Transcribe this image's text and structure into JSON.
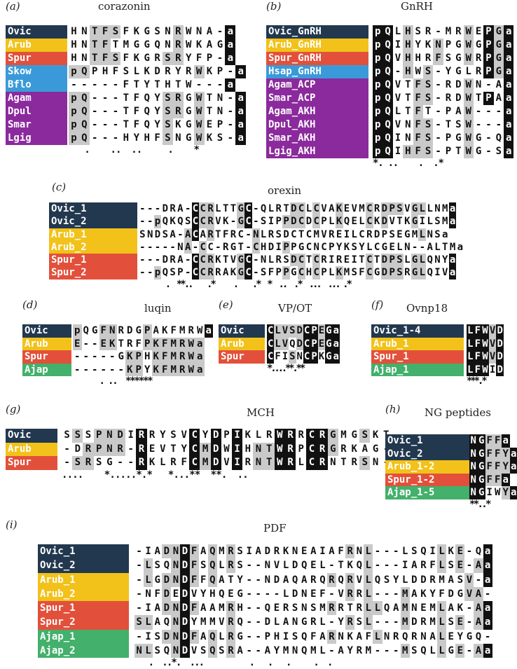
{
  "colors": {
    "navy": "#22384f",
    "gold": "#f2c21a",
    "red": "#e2503b",
    "blue": "#3a9ad9",
    "purple": "#8b2a9c",
    "green": "#43b06b"
  },
  "panels": [
    {
      "id": "a",
      "label": "(a)",
      "title": "corazonin",
      "rows": [
        {
          "name": "Ovic",
          "color": "navy",
          "seq": "HNTFSFKGSNRWNA-a",
          "mask": "................"
        },
        {
          "name": "Arub",
          "color": "gold",
          "seq": "HNTFTMGGQNRWKAGa",
          "mask": "................"
        },
        {
          "name": "Spur",
          "color": "red",
          "seq": "HNTFSFKGRSRYFP-a",
          "mask": "................"
        },
        {
          "name": "Skow",
          "color": "blue",
          "seq": "pQPHFSLKDRYRWKP-a",
          "mask": "................."
        },
        {
          "name": "Bflo",
          "color": "blue",
          "seq": "-----FTYTHTW---a",
          "mask": "................"
        },
        {
          "name": "Agam",
          "color": "purple",
          "seq": "pQ---TFQYSRGWTN-a",
          "mask": "................."
        },
        {
          "name": "Dpul",
          "color": "purple",
          "seq": "pQ---TFQYSRGWTN-a",
          "mask": "................."
        },
        {
          "name": "Smar",
          "color": "purple",
          "seq": "pQ---TFQYSKGWEP-a",
          "mask": "................."
        },
        {
          "name": "Lgig",
          "color": "purple",
          "seq": "pQ---HYHFSNGWKS-a",
          "mask": "................."
        }
      ],
      "consensus": "   .    ..  ..     .    *"
    },
    {
      "id": "b",
      "label": "(b)",
      "title": "GnRH",
      "rows": [
        {
          "name": "Ovic_GnRH",
          "color": "navy",
          "seq": "pQLHSR-MRWEPGa"
        },
        {
          "name": "Arub_GnRH",
          "color": "gold",
          "seq": "pQIHYKNPGWGPGa"
        },
        {
          "name": "Spur_GnRH",
          "color": "red",
          "seq": "pQVHHRFSGWRPGa"
        },
        {
          "name": "Hsap_GnRH",
          "color": "blue",
          "seq": "pQ-HWS-YGLRPGa"
        },
        {
          "name": "Agam_ACP",
          "color": "purple",
          "seq": "pQVTFS-RDWN-Aa"
        },
        {
          "name": "Smar_ACP",
          "color": "purple",
          "seq": "pQVTFS-RDWTPAa"
        },
        {
          "name": "Agam_AKH",
          "color": "purple",
          "seq": "pQLTFT-PAW---a"
        },
        {
          "name": "Dpul_AKH",
          "color": "purple",
          "seq": "pQVNFS-TSW---a"
        },
        {
          "name": "Smar_AKH",
          "color": "purple",
          "seq": "pQINFS-PGWG-Qa"
        },
        {
          "name": "Lgig_AKH",
          "color": "purple",
          "seq": "pQIHFS-PTWG-Sa"
        }
      ],
      "consensus": "*. ..    .  .*"
    },
    {
      "id": "c",
      "label": "(c)",
      "title": "orexin",
      "rows": [
        {
          "name": "Ovic_1",
          "color": "navy",
          "seq": "---DRA-CCRLTTGC-QLRTDCLCVAKEVMCRDPSVGLLNMa"
        },
        {
          "name": "Ovic_2",
          "color": "navy",
          "seq": "--pQKQSCCRVK-GC-SIPPDCDCPLKQELCKDVTKGILSMa"
        },
        {
          "name": "Arub_1",
          "color": "gold",
          "seq": "SNDSA-ACARTFRC-NLRSDCTCMVREILCRDPSEGMLNSa"
        },
        {
          "name": "Arub_2",
          "color": "gold",
          "seq": "-----NA-CC-RGT-CHDIPPGCNCPYKSYLCGELN--ALTMa"
        },
        {
          "name": "Spur_1",
          "color": "red",
          "seq": "---DRA-CCRKTVGC-NLRSDCTCRIREITCTDPSLGLQNYa"
        },
        {
          "name": "Spur_2",
          "color": "red",
          "seq": "--pQSP-CCRRAKGC-SFPPGCHCPLKMSFCGDPSRGLQIVa"
        }
      ],
      "consensus": "       .  **..    .*     .    .*  *  ..  .*  ...  ... .*"
    },
    {
      "id": "d",
      "label": "(d)",
      "title": "luqin",
      "rows": [
        {
          "name": "Ovic",
          "color": "navy",
          "seq": "pQGFNRDGPAKFMRWa"
        },
        {
          "name": "Arub",
          "color": "gold",
          "seq": "E--EKTRFPKFMRWa"
        },
        {
          "name": "Spur",
          "color": "red",
          "seq": "-----GKPHKFMRWa"
        },
        {
          "name": "Ajap",
          "color": "green",
          "seq": "------KPYKFMRWa"
        }
      ],
      "consensus": "      . ..  ******"
    },
    {
      "id": "e",
      "label": "(e)",
      "title": "VP/OT",
      "rows": [
        {
          "name": "Ovic",
          "color": "navy",
          "seq": "CLVSDCPEGa"
        },
        {
          "name": "Arub",
          "color": "gold",
          "seq": "CLVQDCPEGa"
        },
        {
          "name": "Spur",
          "color": "red",
          "seq": "CFISNCPKGa"
        }
      ],
      "consensus": "*....**.**"
    },
    {
      "id": "f",
      "label": "(f)",
      "title": "Ovnp18",
      "rows": [
        {
          "name": "Ovic_1-4",
          "color": "navy",
          "seq": "LFWVD"
        },
        {
          "name": "Arub_1",
          "color": "gold",
          "seq": "LFWVD"
        },
        {
          "name": "Spur_1",
          "color": "red",
          "seq": "LFWVD"
        },
        {
          "name": "Ajap_1",
          "color": "green",
          "seq": "LFWID"
        }
      ],
      "consensus": "***.*"
    },
    {
      "id": "g",
      "label": "(g)",
      "title": "MCH",
      "rows": [
        {
          "name": "Ovic",
          "color": "navy",
          "seq": "SSSPNDIRRYSVCYDPIKLRWRRCRGMGSKT"
        },
        {
          "name": "Arub",
          "color": "gold",
          "seq": "-DRPNR-REVTYCMDWIHNTWRPCRGRKAG-"
        },
        {
          "name": "Spur",
          "color": "red",
          "seq": "-SRSG--RKLRFCMDVIRNTWRLCRNTRSN-"
        }
      ],
      "consensus": "....    *.....*.*   *...**  **.  .."
    },
    {
      "id": "h",
      "label": "(h)",
      "title": "NG peptides",
      "rows": [
        {
          "name": "Ovic_1",
          "color": "navy",
          "seq": "NGFFa"
        },
        {
          "name": "Ovic_2",
          "color": "navy",
          "seq": "NGFFYa"
        },
        {
          "name": "Arub_1-2",
          "color": "gold",
          "seq": "NGFFYa"
        },
        {
          "name": "Spur_1-2",
          "color": "red",
          "seq": "NGFFa"
        },
        {
          "name": "Ajap_1-5",
          "color": "green",
          "seq": "NGIWYa"
        }
      ],
      "consensus": "**..*"
    },
    {
      "id": "i",
      "label": "(i)",
      "title": "PDF",
      "rows": [
        {
          "name": "Ovic_1",
          "color": "navy",
          "seq": "-IADNDFAQMRSIADRKNEAIAFRNL---LSQILKE-Qa"
        },
        {
          "name": "Ovic_2",
          "color": "navy",
          "seq": "-LSQNDFSQLRS--NVLDQEL-TKQL---IARFLSE-Aa"
        },
        {
          "name": "Arub_1",
          "color": "gold",
          "seq": "-LGDNDFFQATY--NDAQARQRQRVLQSYLDDRMASV-a"
        },
        {
          "name": "Arub_2",
          "color": "gold",
          "seq": "-NFDEDVYHQEG----LDNEF-VRRL---MAKYFDGVA-"
        },
        {
          "name": "Spur_1",
          "color": "red",
          "seq": "-IADNDFAAMRH--QERSNSMRRTRLLQAMNEMLAK-Aa"
        },
        {
          "name": "Spur_2",
          "color": "red",
          "seq": "SLAQNDYMMVRQ--DLANGRL-YRSL---MDRMLSE-Aa"
        },
        {
          "name": "Ajap_1",
          "color": "green",
          "seq": "-ISDNDFAQLRG--PHISQFARNKAFLNRQRNALEYGQ-"
        },
        {
          "name": "Ajap_2",
          "color": "green",
          "seq": "NLSQNDVSQSRA--AYMNQML-AYRM---MSQLLGE-Aa"
        }
      ],
      "consensus": "   .  ..*.  ...          .   .   .     .  ."
    }
  ]
}
